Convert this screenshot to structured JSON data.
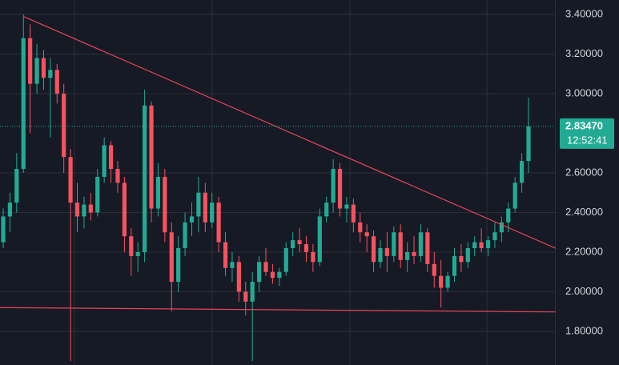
{
  "chart_data": {
    "type": "candlestick",
    "up_color": "#22ab94",
    "down_color": "#f7525f",
    "trendline_color": "#e8445a",
    "open": [
      2.25,
      2.38,
      2.45,
      2.62,
      3.28,
      3.05,
      3.18,
      3.08,
      3.12,
      3.0,
      2.68,
      2.45,
      2.38,
      2.44,
      2.4,
      2.58,
      2.74,
      2.62,
      2.55,
      2.28,
      2.18,
      2.2,
      2.94,
      2.42,
      2.58,
      2.3,
      2.05,
      2.22,
      2.35,
      2.38,
      2.5,
      2.35,
      2.45,
      2.25,
      2.12,
      2.15,
      2.0,
      1.95,
      2.05,
      2.15,
      2.1,
      2.07,
      2.1,
      2.22,
      2.26,
      2.24,
      2.2,
      2.15,
      2.38,
      2.45,
      2.62,
      2.42,
      2.44,
      2.35,
      2.3,
      2.28,
      2.15,
      2.22,
      2.18,
      2.3,
      2.16,
      2.2,
      2.18,
      2.3,
      2.14,
      2.08,
      2.02,
      2.08,
      2.18,
      2.15,
      2.22,
      2.25,
      2.22,
      2.26,
      2.3,
      2.35,
      2.42,
      2.55,
      2.66
    ],
    "high": [
      2.42,
      2.5,
      2.7,
      3.4,
      3.35,
      3.25,
      3.22,
      3.18,
      3.15,
      3.05,
      2.72,
      2.55,
      2.48,
      2.5,
      2.62,
      2.78,
      2.76,
      2.66,
      2.58,
      2.32,
      2.25,
      3.02,
      2.96,
      2.65,
      2.62,
      2.35,
      2.28,
      2.4,
      2.45,
      2.58,
      2.55,
      2.5,
      2.48,
      2.3,
      2.2,
      2.18,
      2.05,
      2.1,
      2.18,
      2.22,
      2.14,
      2.12,
      2.25,
      2.3,
      2.32,
      2.28,
      2.24,
      2.42,
      2.48,
      2.67,
      2.65,
      2.48,
      2.47,
      2.4,
      2.34,
      2.31,
      2.26,
      2.3,
      2.33,
      2.34,
      2.25,
      2.28,
      2.34,
      2.32,
      2.2,
      2.16,
      2.1,
      2.22,
      2.24,
      2.25,
      2.28,
      2.32,
      2.28,
      2.35,
      2.38,
      2.45,
      2.58,
      2.7,
      2.98
    ],
    "low": [
      2.22,
      2.3,
      2.4,
      2.6,
      2.8,
      3.0,
      3.02,
      2.78,
      2.95,
      2.6,
      1.65,
      2.3,
      2.32,
      2.36,
      2.38,
      2.55,
      2.55,
      2.5,
      2.2,
      2.08,
      2.1,
      2.15,
      2.35,
      2.38,
      2.25,
      1.9,
      2.0,
      2.18,
      2.28,
      2.3,
      2.3,
      2.32,
      2.2,
      2.08,
      2.05,
      1.95,
      1.88,
      1.65,
      2.0,
      2.08,
      2.04,
      2.03,
      2.08,
      2.18,
      2.2,
      2.15,
      2.1,
      2.13,
      2.35,
      2.4,
      2.38,
      2.35,
      2.3,
      2.25,
      2.2,
      2.1,
      2.12,
      2.1,
      2.15,
      2.12,
      2.1,
      2.14,
      2.15,
      2.1,
      2.02,
      1.92,
      2.0,
      2.05,
      2.1,
      2.12,
      2.18,
      2.2,
      2.18,
      2.22,
      2.25,
      2.3,
      2.4,
      2.5,
      2.6
    ],
    "close": [
      2.38,
      2.45,
      2.62,
      3.28,
      3.05,
      3.18,
      3.08,
      3.12,
      3.0,
      2.68,
      2.45,
      2.38,
      2.44,
      2.4,
      2.58,
      2.74,
      2.62,
      2.55,
      2.28,
      2.18,
      2.2,
      2.94,
      2.42,
      2.58,
      2.3,
      2.05,
      2.22,
      2.35,
      2.38,
      2.5,
      2.35,
      2.45,
      2.25,
      2.12,
      2.15,
      2.0,
      1.95,
      2.05,
      2.15,
      2.1,
      2.07,
      2.1,
      2.22,
      2.26,
      2.24,
      2.2,
      2.15,
      2.38,
      2.45,
      2.62,
      2.42,
      2.44,
      2.35,
      2.3,
      2.28,
      2.15,
      2.22,
      2.18,
      2.3,
      2.16,
      2.2,
      2.18,
      2.3,
      2.14,
      2.08,
      2.02,
      2.08,
      2.18,
      2.15,
      2.22,
      2.25,
      2.22,
      2.26,
      2.3,
      2.35,
      2.42,
      2.55,
      2.66,
      2.8347
    ],
    "ylim": [
      1.63,
      3.473
    ],
    "yticks": [
      {
        "value": 1.8,
        "label": "1.80000"
      },
      {
        "value": 2.0,
        "label": "2.00000"
      },
      {
        "value": 2.2,
        "label": "2.20000"
      },
      {
        "value": 2.4,
        "label": "2.40000"
      },
      {
        "value": 2.6,
        "label": "2.60000"
      },
      {
        "value": 3.0,
        "label": "3.00000"
      },
      {
        "value": 3.2,
        "label": "3.20000"
      },
      {
        "value": 3.4,
        "label": "3.40000"
      }
    ],
    "grid": true,
    "last_price": {
      "value": 2.8347,
      "label": "2.83470"
    },
    "countdown": "12:52:41",
    "trendlines": [
      {
        "from": [
          3,
          3.39
        ],
        "to": [
          82,
          2.22
        ]
      },
      {
        "from": [
          -0.5,
          1.92
        ],
        "to": [
          82,
          1.898
        ]
      }
    ]
  }
}
